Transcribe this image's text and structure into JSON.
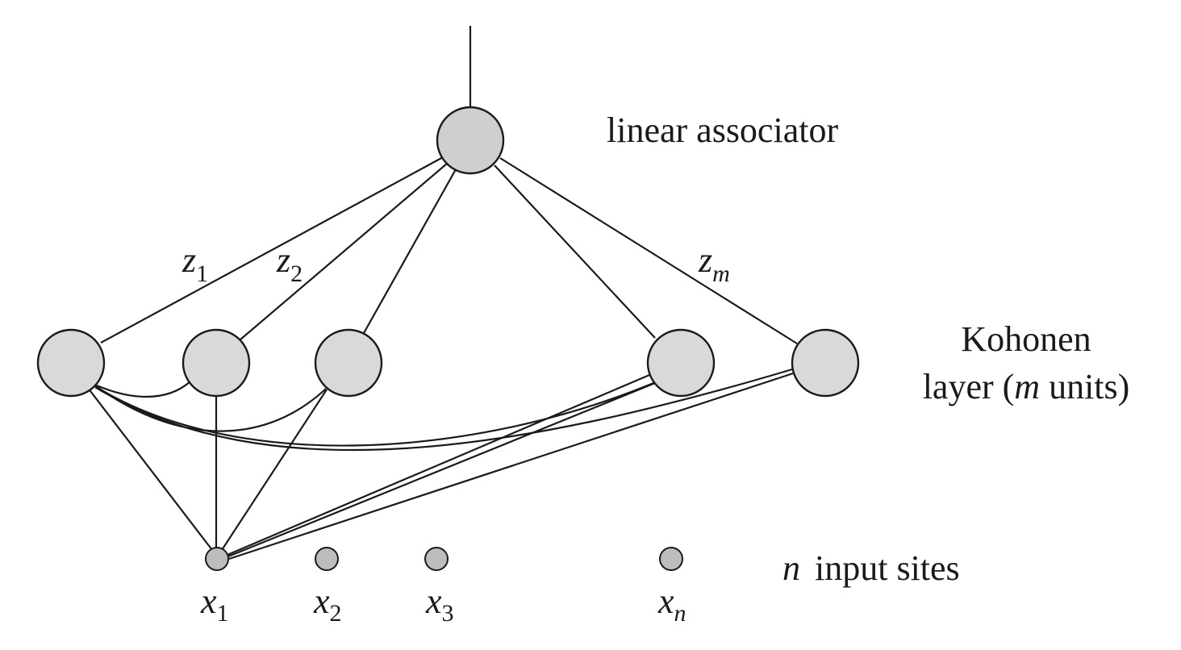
{
  "labels": {
    "linear_associator": "linear associator",
    "kohonen_line1": "Kohonen",
    "kohonen_line2_pre": "layer (",
    "kohonen_line2_var": "m",
    "kohonen_line2_post": " units)",
    "input_sites_var": "n",
    "input_sites_text": "input sites"
  },
  "weights": [
    {
      "var": "z",
      "sub": "1"
    },
    {
      "var": "z",
      "sub": "2"
    },
    {
      "var": "z",
      "sub": "m"
    }
  ],
  "inputs": [
    {
      "var": "x",
      "sub": "1"
    },
    {
      "var": "x",
      "sub": "2"
    },
    {
      "var": "x",
      "sub": "3"
    },
    {
      "var": "x",
      "sub": "n"
    }
  ]
}
